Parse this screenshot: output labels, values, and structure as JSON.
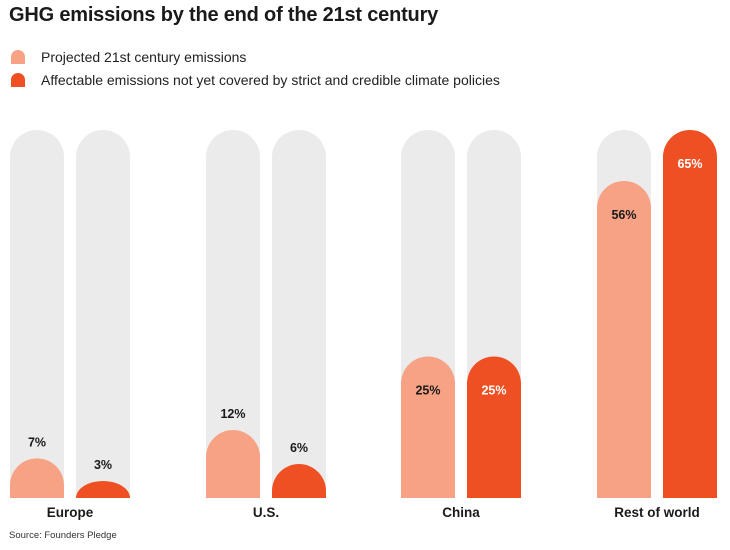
{
  "title": "GHG emissions by the end of the 21st century",
  "legend": [
    {
      "label": "Projected 21st century emissions",
      "color": "#f7a285"
    },
    {
      "label": "Affectable emissions not yet covered by strict and credible climate policies",
      "color": "#ef5023"
    }
  ],
  "source": "Source: Founders Pledge",
  "colors": {
    "track": "#ebebeb",
    "projected": "#f7a285",
    "affectable": "#ef5023"
  },
  "chart_data": {
    "type": "bar",
    "title": "GHG emissions by the end of the 21st century",
    "categories": [
      "Europe",
      "U.S.",
      "China",
      "Rest of world"
    ],
    "series": [
      {
        "name": "Projected 21st century emissions",
        "values": [
          7,
          12,
          25,
          56
        ],
        "labels": [
          "7%",
          "12%",
          "25%",
          "56%"
        ]
      },
      {
        "name": "Affectable emissions not yet covered by strict and credible climate policies",
        "values": [
          3,
          6,
          25,
          65
        ],
        "labels": [
          "3%",
          "6%",
          "25%",
          "65%"
        ]
      }
    ],
    "ylim": [
      0,
      65
    ],
    "grid": false,
    "legend_position": "top-left"
  }
}
